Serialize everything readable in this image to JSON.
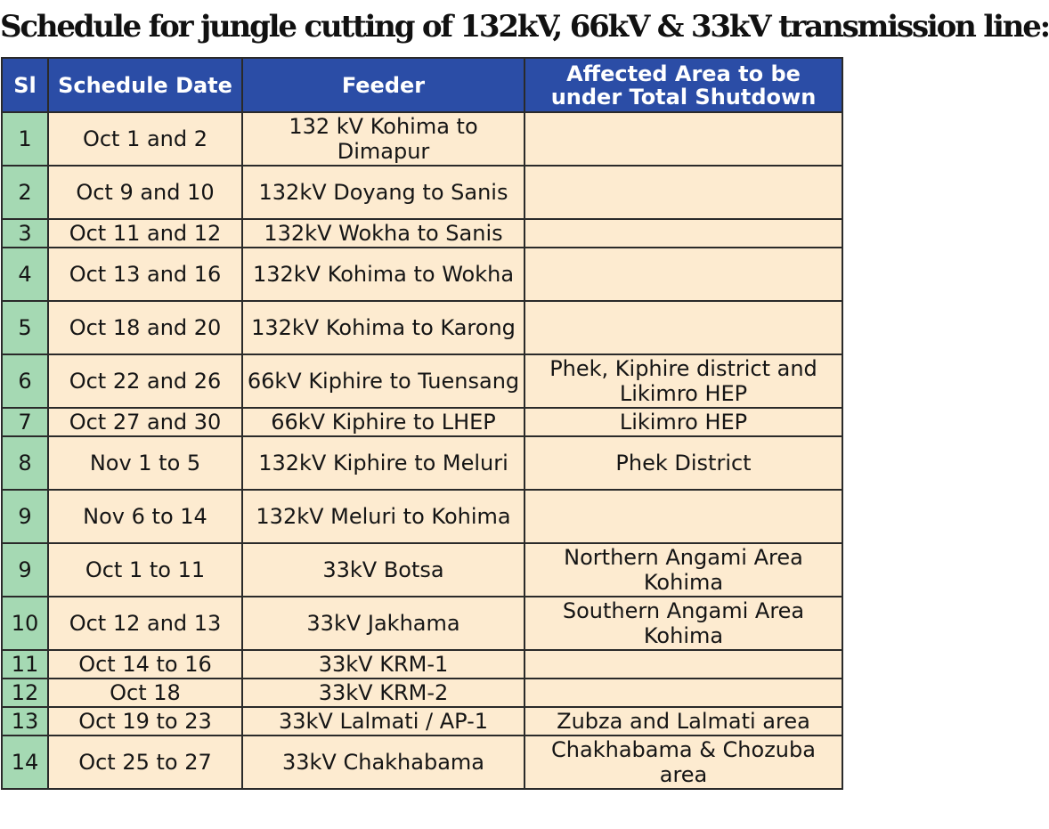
{
  "title": "Schedule for jungle cutting of 132kV, 66kV & 33kV transmission line:",
  "table": {
    "headers": {
      "sl": "Sl",
      "date": "Schedule Date",
      "feeder": "Feeder",
      "area": "Affected Area to be under Total Shutdown"
    },
    "rows": [
      {
        "sl": "1",
        "date": "Oct 1 and 2",
        "feeder": "132 kV Kohima to Dimapur",
        "area": ""
      },
      {
        "sl": "2",
        "date": "Oct 9 and 10",
        "feeder": "132kV Doyang to Sanis",
        "area": ""
      },
      {
        "sl": "3",
        "date": "Oct 11 and 12",
        "feeder": "132kV Wokha to Sanis",
        "area": ""
      },
      {
        "sl": "4",
        "date": "Oct 13 and 16",
        "feeder": "132kV Kohima  to Wokha",
        "area": ""
      },
      {
        "sl": "5",
        "date": "Oct 18 and 20",
        "feeder": "132kV Kohima to Karong",
        "area": ""
      },
      {
        "sl": "6",
        "date": "Oct 22 and 26",
        "feeder": "66kV Kiphire to Tuensang",
        "area": "Phek, Kiphire district and Likimro HEP"
      },
      {
        "sl": "7",
        "date": "Oct 27 and 30",
        "feeder": "66kV Kiphire to LHEP",
        "area": "Likimro HEP"
      },
      {
        "sl": "8",
        "date": "Nov 1 to 5",
        "feeder": "132kV Kiphire to Meluri",
        "area": "Phek District"
      },
      {
        "sl": "9",
        "date": "Nov 6 to 14",
        "feeder": "132kV Meluri to Kohima",
        "area": ""
      },
      {
        "sl": "9",
        "date": "Oct 1 to 11",
        "feeder": "33kV Botsa",
        "area": "Northern Angami Area Kohima"
      },
      {
        "sl": "10",
        "date": "Oct 12 and 13",
        "feeder": "33kV Jakhama",
        "area": "Southern Angami Area Kohima"
      },
      {
        "sl": "11",
        "date": "Oct 14 to 16",
        "feeder": "33kV KRM-1",
        "area": ""
      },
      {
        "sl": "12",
        "date": "Oct 18",
        "feeder": "33kV KRM-2",
        "area": ""
      },
      {
        "sl": "13",
        "date": "Oct 19 to 23",
        "feeder": "33kV Lalmati / AP-1",
        "area": "Zubza and Lalmati area"
      },
      {
        "sl": "14",
        "date": "Oct 25 to 27",
        "feeder": "33kV Chakhabama",
        "area": "Chakhabama & Chozuba area"
      }
    ]
  },
  "colors": {
    "header_bg": "#2b4da6",
    "header_text": "#ffffff",
    "sl_bg": "#a5d9b3",
    "cell_bg": "#fdebd0",
    "border": "#2a2a2a"
  }
}
